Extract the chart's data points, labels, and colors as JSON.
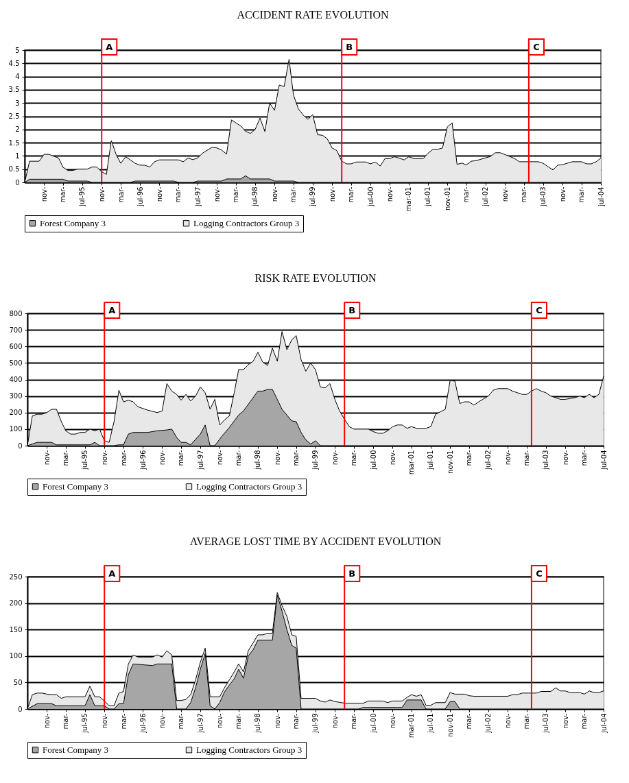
{
  "chart_data": [
    {
      "type": "area",
      "title": "ACCIDENT RATE EVOLUTION",
      "xlim": [
        "1994-07",
        "2004-07"
      ],
      "ylim": [
        0,
        5
      ],
      "yticks": [
        0,
        0.5,
        1,
        1.5,
        2,
        2.5,
        3,
        3.5,
        4,
        4.5,
        5
      ],
      "grid": "y",
      "legend": "bottom",
      "xticks": [
        {
          "value": "1994-11",
          "label": "nov-"
        },
        {
          "value": "1995-03",
          "label": "mar-"
        },
        {
          "value": "1995-07",
          "label": "jul-95"
        },
        {
          "value": "1995-11",
          "label": "nov-"
        },
        {
          "value": "1996-03",
          "label": "mar-"
        },
        {
          "value": "1996-07",
          "label": "jul-96"
        },
        {
          "value": "1996-11",
          "label": "nov-"
        },
        {
          "value": "1997-03",
          "label": "mar-"
        },
        {
          "value": "1997-07",
          "label": "jul-97"
        },
        {
          "value": "1997-11",
          "label": "nov-"
        },
        {
          "value": "1998-03",
          "label": "mar-"
        },
        {
          "value": "1998-07",
          "label": "jul-98"
        },
        {
          "value": "1998-11",
          "label": "nov-"
        },
        {
          "value": "1999-03",
          "label": "mar-"
        },
        {
          "value": "1999-07",
          "label": "jul-99"
        },
        {
          "value": "1999-11",
          "label": "nov-"
        },
        {
          "value": "2000-03",
          "label": "mar-"
        },
        {
          "value": "2000-07",
          "label": "jul-00"
        },
        {
          "value": "2000-11",
          "label": "nov-"
        },
        {
          "value": "2001-03",
          "label": "mar-01"
        },
        {
          "value": "2001-07",
          "label": "jul-01"
        },
        {
          "value": "2001-11",
          "label": "nov-01"
        },
        {
          "value": "2002-03",
          "label": "mar-"
        },
        {
          "value": "2002-07",
          "label": "jul-02"
        },
        {
          "value": "2002-11",
          "label": "nov-"
        },
        {
          "value": "2003-03",
          "label": "mar-"
        },
        {
          "value": "2003-07",
          "label": "jul-03"
        },
        {
          "value": "2003-11",
          "label": "nov-"
        },
        {
          "value": "2004-03",
          "label": "mar-"
        },
        {
          "value": "2004-07",
          "label": "jul-04"
        }
      ],
      "ref_lines": [
        {
          "axis": "x",
          "value": "1995-11",
          "label": "A",
          "color": "#ff0000"
        },
        {
          "axis": "x",
          "value": "2000-01",
          "label": "B",
          "color": "#ff0000"
        },
        {
          "axis": "x",
          "value": "2003-04",
          "label": "C",
          "color": "#ff0000"
        }
      ],
      "series": [
        {
          "name": "Forest Company 3",
          "color": "#a6a6a6",
          "x": [
            "1994-07",
            "1994-08",
            "1995-03",
            "1995-04",
            "1995-08",
            "1995-09",
            "1996-05",
            "1996-06",
            "1997-02",
            "1997-03",
            "1997-06",
            "1997-07",
            "1997-12",
            "1998-01",
            "1998-04",
            "1998-05",
            "1998-06",
            "1998-10",
            "1998-11",
            "1999-03",
            "1999-04",
            "2004-07"
          ],
          "values": [
            0,
            0.12,
            0.12,
            0.05,
            0.05,
            0,
            0,
            0.05,
            0.05,
            0,
            0,
            0.05,
            0.05,
            0.13,
            0.13,
            0.25,
            0.13,
            0.13,
            0.05,
            0.05,
            0,
            0
          ]
        },
        {
          "name": "Logging Contractors Group 3",
          "color": "#e8e8e8",
          "x": [
            "1994-07",
            "1994-08",
            "1994-10",
            "1994-11",
            "1994-12",
            "1995-02",
            "1995-03",
            "1995-04",
            "1995-05",
            "1995-06",
            "1995-08",
            "1995-09",
            "1995-10",
            "1995-11",
            "1995-12",
            "1996-01",
            "1996-02",
            "1996-03",
            "1996-04",
            "1996-05",
            "1996-06",
            "1996-07",
            "1996-08",
            "1996-09",
            "1996-10",
            "1996-11",
            "1997-03",
            "1997-04",
            "1997-05",
            "1997-06",
            "1997-07",
            "1997-08",
            "1997-10",
            "1997-11",
            "1997-12",
            "1998-01",
            "1998-02",
            "1998-03",
            "1998-04",
            "1998-05",
            "1998-06",
            "1998-07",
            "1998-08",
            "1998-09",
            "1998-10",
            "1998-11",
            "1998-12",
            "1999-01",
            "1999-02",
            "1999-03",
            "1999-04",
            "1999-05",
            "1999-06",
            "1999-07",
            "1999-08",
            "1999-09",
            "1999-10",
            "1999-11",
            "1999-12",
            "2000-01",
            "2000-02",
            "2000-03",
            "2000-04",
            "2000-06",
            "2000-07",
            "2000-08",
            "2000-09",
            "2000-10",
            "2000-11",
            "2000-12",
            "2001-02",
            "2001-03",
            "2001-04",
            "2001-06",
            "2001-07",
            "2001-08",
            "2001-09",
            "2001-10",
            "2001-11",
            "2001-12",
            "2002-01",
            "2002-02",
            "2002-03",
            "2002-04",
            "2002-05",
            "2002-08",
            "2002-09",
            "2002-10",
            "2002-12",
            "2003-01",
            "2003-02",
            "2003-06",
            "2003-07",
            "2003-09",
            "2003-10",
            "2003-11",
            "2004-01",
            "2004-03",
            "2004-04",
            "2004-05",
            "2004-06",
            "2004-07"
          ],
          "values": [
            0,
            0.8,
            0.8,
            1.06,
            1.06,
            0.92,
            0.57,
            0.45,
            0.45,
            0.5,
            0.5,
            0.58,
            0.58,
            0.4,
            0.3,
            1.58,
            1.05,
            0.72,
            0.97,
            0.85,
            0.72,
            0.65,
            0.65,
            0.58,
            0.78,
            0.85,
            0.85,
            0.78,
            0.92,
            0.86,
            0.92,
            1.1,
            1.33,
            1.3,
            1.22,
            1.07,
            2.36,
            2.25,
            2.13,
            1.93,
            1.85,
            2.0,
            2.43,
            1.92,
            3.0,
            2.72,
            3.68,
            3.62,
            4.65,
            3.3,
            2.78,
            2.55,
            2.38,
            2.56,
            1.8,
            1.78,
            1.65,
            1.3,
            1.2,
            0.8,
            0.7,
            0.7,
            0.77,
            0.77,
            0.7,
            0.77,
            0.62,
            0.9,
            0.9,
            0.97,
            0.85,
            0.97,
            0.9,
            0.9,
            1.1,
            1.25,
            1.25,
            1.3,
            2.1,
            2.25,
            0.68,
            0.73,
            0.66,
            0.8,
            0.82,
            0.98,
            1.12,
            1.12,
            0.98,
            0.9,
            0.78,
            0.78,
            0.72,
            0.47,
            0.65,
            0.67,
            0.78,
            0.78,
            0.7,
            0.7,
            0.78,
            0.92
          ]
        }
      ]
    },
    {
      "type": "area",
      "title": "RISK RATE EVOLUTION",
      "xlim": [
        "1994-07",
        "2004-07"
      ],
      "ylim": [
        0,
        800
      ],
      "yticks": [
        0,
        100,
        200,
        300,
        400,
        500,
        600,
        700,
        800
      ],
      "grid": "y",
      "legend": "bottom",
      "xticks": [
        {
          "value": "1994-11",
          "label": "nov-"
        },
        {
          "value": "1995-03",
          "label": "mar-"
        },
        {
          "value": "1995-07",
          "label": "jul-95"
        },
        {
          "value": "1995-11",
          "label": "nov-"
        },
        {
          "value": "1996-03",
          "label": "mar-"
        },
        {
          "value": "1996-07",
          "label": "jul-96"
        },
        {
          "value": "1996-11",
          "label": "nov-"
        },
        {
          "value": "1997-03",
          "label": "mar-"
        },
        {
          "value": "1997-07",
          "label": "jul-97"
        },
        {
          "value": "1997-11",
          "label": "nov-"
        },
        {
          "value": "1998-03",
          "label": "mar-"
        },
        {
          "value": "1998-07",
          "label": "jul-98"
        },
        {
          "value": "1998-11",
          "label": "nov-"
        },
        {
          "value": "1999-03",
          "label": "mar-"
        },
        {
          "value": "1999-07",
          "label": "jul-99"
        },
        {
          "value": "1999-11",
          "label": "nov-"
        },
        {
          "value": "2000-03",
          "label": "mar-"
        },
        {
          "value": "2000-07",
          "label": "jul-00"
        },
        {
          "value": "2000-11",
          "label": "nov-"
        },
        {
          "value": "2001-03",
          "label": "mar-01"
        },
        {
          "value": "2001-07",
          "label": "jul-01"
        },
        {
          "value": "2001-11",
          "label": "nov-01"
        },
        {
          "value": "2002-03",
          "label": "mar-"
        },
        {
          "value": "2002-07",
          "label": "jul-02"
        },
        {
          "value": "2002-11",
          "label": "nov-"
        },
        {
          "value": "2003-03",
          "label": "mar-"
        },
        {
          "value": "2003-07",
          "label": "jul-03"
        },
        {
          "value": "2003-11",
          "label": "nov-"
        },
        {
          "value": "2004-03",
          "label": "mar-"
        },
        {
          "value": "2004-07",
          "label": "jul-04"
        }
      ],
      "ref_lines": [
        {
          "axis": "x",
          "value": "1995-11",
          "label": "A",
          "color": "#ff0000"
        },
        {
          "axis": "x",
          "value": "2000-01",
          "label": "B",
          "color": "#ff0000"
        },
        {
          "axis": "x",
          "value": "2003-04",
          "label": "C",
          "color": "#ff0000"
        }
      ],
      "series": [
        {
          "name": "Forest Company 3",
          "color": "#a6a6a6",
          "x": [
            "1994-07",
            "1994-08",
            "1994-09",
            "1994-12",
            "1995-01",
            "1995-08",
            "1995-09",
            "1995-10",
            "1996-01",
            "1996-02",
            "1996-03",
            "1996-04",
            "1996-05",
            "1996-08",
            "1996-10",
            "1996-12",
            "1997-01",
            "1997-02",
            "1997-03",
            "1997-04",
            "1997-05",
            "1997-07",
            "1997-08",
            "1997-09",
            "1997-10",
            "1997-11",
            "1997-12",
            "1998-01",
            "1998-02",
            "1998-03",
            "1998-04",
            "1998-05",
            "1998-06",
            "1998-07",
            "1998-08",
            "1998-09",
            "1998-10",
            "1998-11",
            "1998-12",
            "1999-01",
            "1999-02",
            "1999-03",
            "1999-04",
            "1999-05",
            "1999-06",
            "1999-07",
            "1999-08",
            "2004-07"
          ],
          "values": [
            0,
            10,
            20,
            20,
            5,
            5,
            20,
            0,
            0,
            5,
            5,
            70,
            80,
            80,
            90,
            95,
            100,
            50,
            20,
            20,
            5,
            70,
            125,
            0,
            0,
            40,
            75,
            110,
            150,
            185,
            210,
            250,
            290,
            330,
            330,
            340,
            340,
            280,
            220,
            185,
            150,
            145,
            80,
            35,
            10,
            30,
            0,
            0
          ]
        },
        {
          "name": "Logging Contractors Group 3",
          "color": "#e8e8e8",
          "x": [
            "1994-07",
            "1994-08",
            "1994-09",
            "1994-10",
            "1994-11",
            "1994-12",
            "1995-01",
            "1995-02",
            "1995-03",
            "1995-04",
            "1995-05",
            "1995-06",
            "1995-07",
            "1995-08",
            "1995-09",
            "1995-10",
            "1995-11",
            "1995-12",
            "1996-01",
            "1996-02",
            "1996-03",
            "1996-04",
            "1996-05",
            "1996-06",
            "1996-08",
            "1996-10",
            "1996-11",
            "1996-12",
            "1997-01",
            "1997-02",
            "1997-03",
            "1997-04",
            "1997-05",
            "1997-06",
            "1997-07",
            "1997-08",
            "1997-09",
            "1997-10",
            "1997-11",
            "1997-12",
            "1998-01",
            "1998-02",
            "1998-03",
            "1998-04",
            "1998-05",
            "1998-06",
            "1998-07",
            "1998-08",
            "1998-09",
            "1998-10",
            "1998-11",
            "1998-12",
            "1999-01",
            "1999-02",
            "1999-03",
            "1999-04",
            "1999-05",
            "1999-06",
            "1999-07",
            "1999-08",
            "1999-09",
            "1999-10",
            "1999-11",
            "1999-12",
            "2000-01",
            "2000-02",
            "2000-03",
            "2000-06",
            "2000-07",
            "2000-08",
            "2000-09",
            "2000-10",
            "2000-11",
            "2000-12",
            "2001-01",
            "2001-02",
            "2001-03",
            "2001-04",
            "2001-06",
            "2001-07",
            "2001-08",
            "2001-09",
            "2001-10",
            "2001-11",
            "2001-12",
            "2002-01",
            "2002-02",
            "2002-03",
            "2002-04",
            "2002-05",
            "2002-07",
            "2002-08",
            "2002-09",
            "2002-11",
            "2002-12",
            "2003-02",
            "2003-03",
            "2003-04",
            "2003-05",
            "2003-06",
            "2003-07",
            "2003-08",
            "2003-10",
            "2003-11",
            "2004-01",
            "2004-02",
            "2004-03",
            "2004-04",
            "2004-05",
            "2004-06",
            "2004-07"
          ],
          "values": [
            0,
            180,
            190,
            190,
            200,
            220,
            220,
            145,
            90,
            70,
            70,
            80,
            80,
            100,
            90,
            100,
            30,
            20,
            145,
            335,
            265,
            275,
            265,
            235,
            215,
            200,
            210,
            375,
            330,
            310,
            275,
            310,
            270,
            300,
            355,
            320,
            220,
            280,
            125,
            155,
            180,
            320,
            460,
            460,
            490,
            510,
            565,
            505,
            485,
            590,
            510,
            690,
            580,
            640,
            665,
            520,
            450,
            500,
            460,
            355,
            350,
            375,
            280,
            210,
            160,
            115,
            100,
            100,
            85,
            75,
            75,
            90,
            115,
            125,
            125,
            105,
            115,
            105,
            105,
            115,
            190,
            205,
            220,
            395,
            390,
            255,
            265,
            265,
            245,
            265,
            300,
            335,
            345,
            345,
            330,
            310,
            310,
            330,
            345,
            330,
            320,
            300,
            280,
            280,
            290,
            300,
            290,
            310,
            290,
            310,
            420
          ]
        }
      ]
    },
    {
      "type": "area",
      "title": "AVERAGE LOST TIME BY ACCIDENT EVOLUTION",
      "xlim": [
        "1994-07",
        "2004-07"
      ],
      "ylim": [
        0,
        250
      ],
      "yticks": [
        0,
        50,
        100,
        150,
        200,
        250
      ],
      "grid": "y",
      "legend": "bottom",
      "xticks": [
        {
          "value": "1994-11",
          "label": "nov-"
        },
        {
          "value": "1995-03",
          "label": "mar-"
        },
        {
          "value": "1995-07",
          "label": "jul-95"
        },
        {
          "value": "1995-11",
          "label": "nov-"
        },
        {
          "value": "1996-03",
          "label": "mar-"
        },
        {
          "value": "1996-07",
          "label": "jul-96"
        },
        {
          "value": "1996-11",
          "label": "nov-"
        },
        {
          "value": "1997-03",
          "label": "mar-"
        },
        {
          "value": "1997-07",
          "label": "jul-97"
        },
        {
          "value": "1997-11",
          "label": "nov-"
        },
        {
          "value": "1998-03",
          "label": "mar-"
        },
        {
          "value": "1998-07",
          "label": "jul-98"
        },
        {
          "value": "1998-11",
          "label": "nov-"
        },
        {
          "value": "1999-03",
          "label": "mar-"
        },
        {
          "value": "1999-07",
          "label": "jul-99"
        },
        {
          "value": "1999-11",
          "label": "nov-"
        },
        {
          "value": "2000-03",
          "label": "mar-"
        },
        {
          "value": "2000-07",
          "label": "jul-00"
        },
        {
          "value": "2000-11",
          "label": "nov-"
        },
        {
          "value": "2001-03",
          "label": "mar-01"
        },
        {
          "value": "2001-07",
          "label": "jul-01"
        },
        {
          "value": "2001-11",
          "label": "nov-01"
        },
        {
          "value": "2002-03",
          "label": "mar-"
        },
        {
          "value": "2002-07",
          "label": "jul-02"
        },
        {
          "value": "2002-11",
          "label": "nov-"
        },
        {
          "value": "2003-03",
          "label": "mar-"
        },
        {
          "value": "2003-07",
          "label": "jul-03"
        },
        {
          "value": "2003-11",
          "label": "nov-"
        },
        {
          "value": "2004-03",
          "label": "mar-"
        },
        {
          "value": "2004-07",
          "label": "jul-04"
        }
      ],
      "ref_lines": [
        {
          "axis": "x",
          "value": "1995-11",
          "label": "A",
          "color": "#ff0000"
        },
        {
          "axis": "x",
          "value": "2000-01",
          "label": "B",
          "color": "#ff0000"
        },
        {
          "axis": "x",
          "value": "2003-04",
          "label": "C",
          "color": "#ff0000"
        }
      ],
      "series": [
        {
          "name": "Forest Company 3",
          "color": "#a6a6a6",
          "x": [
            "1994-07",
            "1994-09",
            "1994-12",
            "1995-01",
            "1995-07",
            "1995-08",
            "1995-09",
            "1995-11",
            "1995-12",
            "1996-01",
            "1996-02",
            "1996-03",
            "1996-04",
            "1996-05",
            "1996-09",
            "1996-10",
            "1997-01",
            "1997-02",
            "1997-04",
            "1997-05",
            "1997-06",
            "1997-07",
            "1997-08",
            "1997-09",
            "1997-10",
            "1997-11",
            "1997-12",
            "1998-01",
            "1998-02",
            "1998-03",
            "1998-04",
            "1998-05",
            "1998-06",
            "1998-07",
            "1998-10",
            "1998-11",
            "1998-12",
            "1999-01",
            "1999-02",
            "1999-03",
            "1999-04",
            "2000-04",
            "2000-05",
            "2000-12",
            "2001-01",
            "2001-02",
            "2001-05",
            "2001-06",
            "2001-10",
            "2001-11",
            "2001-12",
            "2002-01",
            "2004-07"
          ],
          "values": [
            0,
            10,
            10,
            6,
            6,
            27,
            6,
            6,
            0,
            0,
            10,
            10,
            65,
            85,
            82,
            85,
            85,
            0,
            0,
            12,
            40,
            75,
            105,
            6,
            0,
            12,
            32,
            45,
            57,
            75,
            58,
            100,
            112,
            130,
            130,
            215,
            185,
            150,
            120,
            115,
            0,
            0,
            3,
            3,
            3,
            17,
            17,
            0,
            0,
            14,
            14,
            0,
            0
          ]
        },
        {
          "name": "Logging Contractors Group 3",
          "color": "#e8e8e8",
          "x": [
            "1994-07",
            "1994-08",
            "1994-09",
            "1994-10",
            "1994-11",
            "1994-12",
            "1995-01",
            "1995-02",
            "1995-03",
            "1995-07",
            "1995-08",
            "1995-09",
            "1995-10",
            "1995-11",
            "1995-12",
            "1996-01",
            "1996-02",
            "1996-03",
            "1996-04",
            "1996-05",
            "1996-06",
            "1996-09",
            "1996-10",
            "1996-11",
            "1996-12",
            "1997-01",
            "1997-02",
            "1997-03",
            "1997-04",
            "1997-05",
            "1997-06",
            "1997-07",
            "1997-08",
            "1997-09",
            "1997-11",
            "1997-12",
            "1998-01",
            "1998-02",
            "1998-03",
            "1998-04",
            "1998-05",
            "1998-06",
            "1998-07",
            "1998-08",
            "1998-09",
            "1998-10",
            "1998-11",
            "1998-12",
            "1999-01",
            "1999-02",
            "1999-03",
            "1999-04",
            "1999-07",
            "1999-08",
            "1999-09",
            "1999-10",
            "1999-11",
            "2000-01",
            "2000-05",
            "2000-06",
            "2000-09",
            "2000-10",
            "2000-11",
            "2001-01",
            "2001-02",
            "2001-03",
            "2001-04",
            "2001-05",
            "2001-06",
            "2001-07",
            "2001-08",
            "2001-10",
            "2001-11",
            "2001-12",
            "2002-02",
            "2002-03",
            "2002-04",
            "2002-11",
            "2002-12",
            "2003-01",
            "2003-02",
            "2003-05",
            "2003-06",
            "2003-08",
            "2003-09",
            "2003-10",
            "2003-11",
            "2003-12",
            "2004-02",
            "2004-03",
            "2004-04",
            "2004-05",
            "2004-06",
            "2004-07"
          ],
          "values": [
            0,
            27,
            30,
            30,
            28,
            27,
            27,
            20,
            23,
            23,
            43,
            23,
            23,
            15,
            6,
            6,
            30,
            33,
            85,
            102,
            98,
            98,
            102,
            98,
            110,
            102,
            16,
            16,
            18,
            27,
            55,
            88,
            115,
            23,
            23,
            40,
            55,
            70,
            85,
            70,
            110,
            125,
            140,
            140,
            143,
            143,
            220,
            195,
            175,
            140,
            137,
            20,
            20,
            15,
            13,
            17,
            14,
            11,
            11,
            15,
            15,
            12,
            15,
            15,
            22,
            27,
            24,
            27,
            7,
            7,
            12,
            12,
            31,
            28,
            28,
            25,
            24,
            24,
            27,
            27,
            30,
            30,
            33,
            33,
            40,
            34,
            34,
            31,
            31,
            28,
            34,
            31,
            31,
            34
          ]
        }
      ]
    }
  ]
}
